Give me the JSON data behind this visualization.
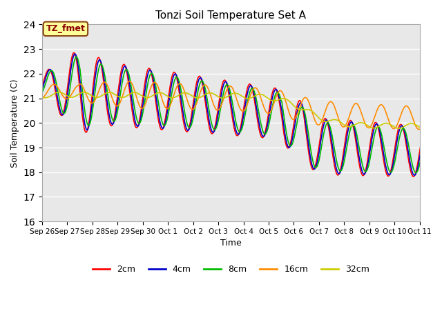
{
  "title": "Tonzi Soil Temperature Set A",
  "xlabel": "Time",
  "ylabel": "Soil Temperature (C)",
  "ylim": [
    16.0,
    24.0
  ],
  "yticks": [
    16.0,
    17.0,
    18.0,
    19.0,
    20.0,
    21.0,
    22.0,
    23.0,
    24.0
  ],
  "annotation_text": "TZ_fmet",
  "annotation_color": "#8B0000",
  "annotation_bg": "#FFFF99",
  "annotation_border": "#8B4513",
  "line_colors": {
    "2cm": "#FF0000",
    "4cm": "#0000CC",
    "8cm": "#00BB00",
    "16cm": "#FF8C00",
    "32cm": "#CCCC00"
  },
  "legend_labels": [
    "2cm",
    "4cm",
    "8cm",
    "16cm",
    "32cm"
  ],
  "xtick_labels": [
    "Sep 26",
    "Sep 27",
    "Sep 28",
    "Sep 29",
    "Sep 30",
    "Oct 1",
    "Oct 2",
    "Oct 3",
    "Oct 4",
    "Oct 5",
    "Oct 6",
    "Oct 7",
    "Oct 8",
    "Oct 9",
    "Oct 10",
    "Oct 11"
  ],
  "bg_color": "#E8E8E8",
  "fig_bg_color": "#FFFFFF",
  "linewidth": 1.2,
  "n_points": 480
}
